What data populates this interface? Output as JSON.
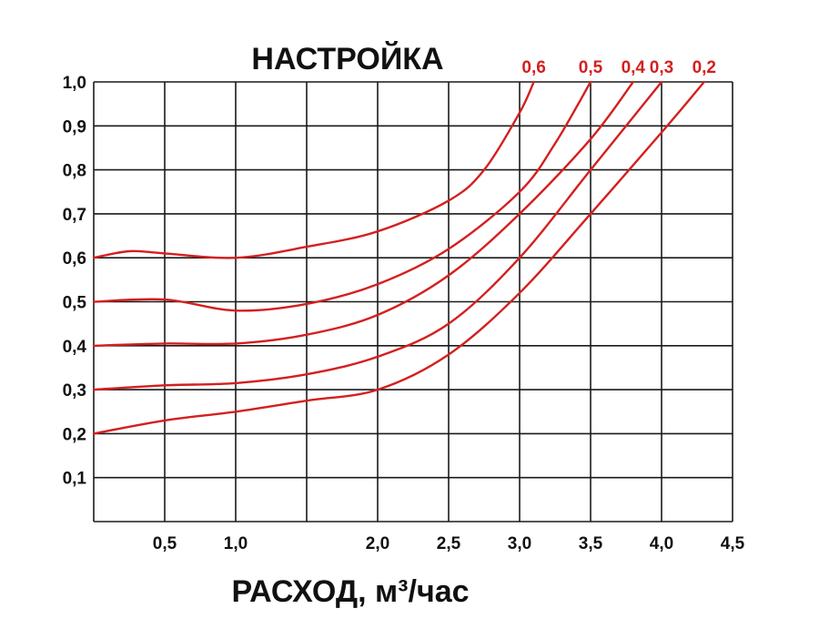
{
  "chart_data": {
    "type": "line",
    "title": "НАСТРОЙКА",
    "xlabel": "РАСХОД, м³/час",
    "ylabel": "",
    "xlim": [
      0,
      4.5
    ],
    "ylim": [
      0,
      1.0
    ],
    "grid": true,
    "x_ticks": [
      {
        "value": 0.5,
        "label": "0,5"
      },
      {
        "value": 1.0,
        "label": "1,0"
      },
      {
        "value": 2.0,
        "label": "2,0"
      },
      {
        "value": 2.5,
        "label": "2,5"
      },
      {
        "value": 3.0,
        "label": "3,0"
      },
      {
        "value": 3.5,
        "label": "3,5"
      },
      {
        "value": 4.0,
        "label": "4,0"
      },
      {
        "value": 4.5,
        "label": "4,5"
      }
    ],
    "y_ticks": [
      {
        "value": 0.1,
        "label": "0,1"
      },
      {
        "value": 0.2,
        "label": "0,2"
      },
      {
        "value": 0.3,
        "label": "0,3"
      },
      {
        "value": 0.4,
        "label": "0,4"
      },
      {
        "value": 0.5,
        "label": "0,5"
      },
      {
        "value": 0.6,
        "label": "0,6"
      },
      {
        "value": 0.7,
        "label": "0,7"
      },
      {
        "value": 0.8,
        "label": "0,8"
      },
      {
        "value": 0.9,
        "label": "0,9"
      },
      {
        "value": 1.0,
        "label": "1,0"
      }
    ],
    "series": [
      {
        "name": "0,6",
        "x": [
          0,
          0.25,
          0.5,
          1.0,
          1.5,
          2.0,
          2.5,
          2.75,
          3.0,
          3.1
        ],
        "y": [
          0.6,
          0.615,
          0.61,
          0.6,
          0.625,
          0.66,
          0.73,
          0.8,
          0.93,
          1.0
        ]
      },
      {
        "name": "0,5",
        "x": [
          0,
          0.5,
          1.0,
          1.5,
          2.0,
          2.5,
          3.0,
          3.25,
          3.5
        ],
        "y": [
          0.5,
          0.505,
          0.48,
          0.495,
          0.54,
          0.62,
          0.75,
          0.86,
          1.0
        ]
      },
      {
        "name": "0,4",
        "x": [
          0,
          0.5,
          1.0,
          1.5,
          2.0,
          2.5,
          3.0,
          3.5,
          3.8
        ],
        "y": [
          0.4,
          0.405,
          0.405,
          0.425,
          0.47,
          0.56,
          0.7,
          0.87,
          1.0
        ]
      },
      {
        "name": "0,3",
        "x": [
          0,
          0.5,
          1.0,
          1.5,
          2.0,
          2.5,
          3.0,
          3.5,
          4.0
        ],
        "y": [
          0.3,
          0.31,
          0.315,
          0.335,
          0.375,
          0.45,
          0.6,
          0.8,
          1.0
        ]
      },
      {
        "name": "0,2",
        "x": [
          0,
          0.5,
          1.0,
          1.5,
          2.0,
          2.5,
          3.0,
          3.5,
          4.0,
          4.3
        ],
        "y": [
          0.2,
          0.23,
          0.25,
          0.275,
          0.3,
          0.38,
          0.52,
          0.7,
          0.885,
          1.0
        ]
      }
    ],
    "colors": {
      "series": "#d41f1f",
      "grid": "#1a1a1a",
      "text": "#111111"
    }
  }
}
